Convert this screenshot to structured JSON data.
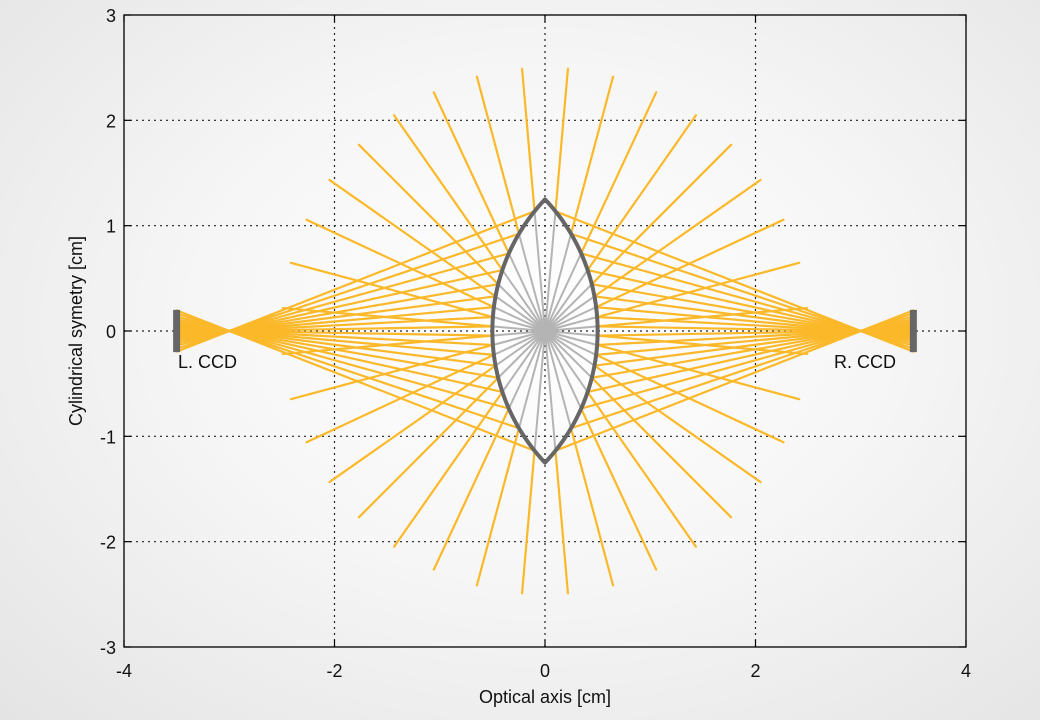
{
  "chart_data": {
    "type": "ray-diagram",
    "xlabel": "Optical axis [cm]",
    "ylabel": "Cylindrical symetry [cm]",
    "xlim": [
      -4,
      4
    ],
    "ylim": [
      -3,
      3
    ],
    "xticks": [
      -4,
      -2,
      0,
      2,
      4
    ],
    "yticks": [
      -3,
      -2,
      -1,
      0,
      1,
      2,
      3
    ],
    "grid": true,
    "lens": {
      "center_x": 0,
      "half_height": 1.25,
      "half_thickness": 0.5
    },
    "focal_points": [
      -3,
      3
    ],
    "ray_count": 36,
    "outer_ray_length": 2.5,
    "ccds": [
      {
        "name": "left-ccd",
        "label": "L. CCD",
        "x": -3.5,
        "half_height": 0.2
      },
      {
        "name": "right-ccd",
        "label": "R. CCD",
        "x": 3.5,
        "half_height": 0.2
      }
    ],
    "colors": {
      "rays": "#fbb829",
      "inner_rays": "#b4b4b4",
      "lens": "#666666",
      "ccd": "#666666",
      "grid": "#222222"
    }
  }
}
